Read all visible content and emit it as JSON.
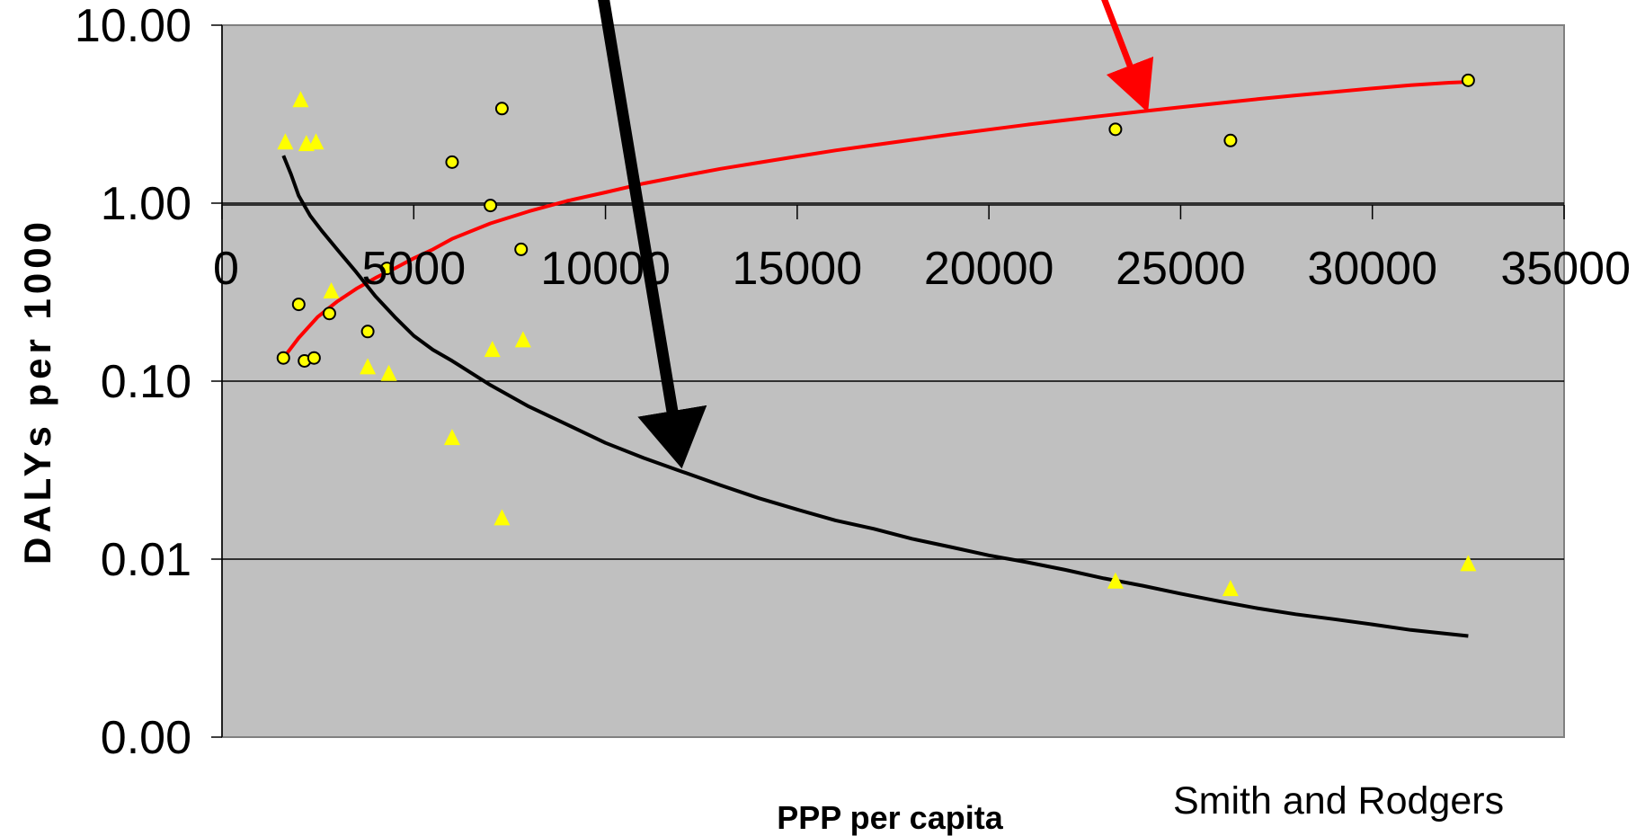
{
  "chart_data": {
    "type": "scatter",
    "title": "",
    "xlabel": "PPP per capita",
    "ylabel": "DALYs  per 1000",
    "x_scale": "linear",
    "y_scale": "log",
    "xlim": [
      0,
      35000
    ],
    "ylim": [
      0.001,
      10
    ],
    "x_ticks": [
      0,
      5000,
      10000,
      15000,
      20000,
      25000,
      30000,
      35000
    ],
    "x_tick_labels": [
      "0",
      "5000",
      "10000",
      "15000",
      "20000",
      "25000",
      "30000",
      "35000"
    ],
    "y_ticks": [
      10,
      1,
      0.1,
      0.01,
      0.001
    ],
    "y_tick_labels": [
      "10.00",
      "1.00",
      "0.10",
      "0.01",
      "0.00"
    ],
    "grid": "horizontal",
    "plot_background": "#c0c0c0",
    "source_note": "Smith and Rodgers",
    "series": [
      {
        "marker": "circle",
        "color": "#ffff00",
        "edge_color": "#000000",
        "points": [
          [
            1600,
            0.135
          ],
          [
            2000,
            0.27
          ],
          [
            2150,
            0.13
          ],
          [
            2400,
            0.135
          ],
          [
            2800,
            0.24
          ],
          [
            3800,
            0.19
          ],
          [
            4300,
            0.43
          ],
          [
            6000,
            1.7
          ],
          [
            7000,
            0.97
          ],
          [
            7300,
            3.4
          ],
          [
            7800,
            0.55
          ],
          [
            23300,
            2.6
          ],
          [
            26300,
            2.25
          ],
          [
            32500,
            4.9
          ]
        ]
      },
      {
        "marker": "triangle",
        "color": "#ffff00",
        "points": [
          [
            1650,
            2.2
          ],
          [
            2050,
            3.8
          ],
          [
            2200,
            2.15
          ],
          [
            2450,
            2.2
          ],
          [
            2850,
            0.32
          ],
          [
            3800,
            0.12
          ],
          [
            4350,
            0.11
          ],
          [
            6000,
            0.048
          ],
          [
            7050,
            0.15
          ],
          [
            7300,
            0.017
          ],
          [
            7850,
            0.17
          ],
          [
            23300,
            0.0075
          ],
          [
            26300,
            0.0068
          ],
          [
            32500,
            0.0094
          ]
        ]
      },
      {
        "type": "line",
        "color": "#ff0000",
        "x": [
          1600,
          2000,
          2500,
          3000,
          3500,
          4000,
          4500,
          5000,
          5500,
          6000,
          7000,
          8000,
          9000,
          10000,
          11000,
          12000,
          13000,
          14000,
          15000,
          16000,
          17000,
          18000,
          19000,
          20000,
          21000,
          22000,
          23000,
          24000,
          25000,
          26000,
          27000,
          28000,
          29000,
          30000,
          31000,
          32000,
          32500
        ],
        "y": [
          0.135,
          0.175,
          0.23,
          0.28,
          0.33,
          0.38,
          0.43,
          0.49,
          0.55,
          0.63,
          0.77,
          0.9,
          1.03,
          1.15,
          1.29,
          1.42,
          1.56,
          1.69,
          1.83,
          1.98,
          2.12,
          2.27,
          2.43,
          2.59,
          2.76,
          2.93,
          3.1,
          3.28,
          3.46,
          3.65,
          3.84,
          4.03,
          4.22,
          4.41,
          4.6,
          4.75,
          4.8
        ]
      },
      {
        "type": "line",
        "color": "#000000",
        "x": [
          1600,
          1800,
          2000,
          2300,
          2600,
          3000,
          3500,
          4000,
          4500,
          5000,
          5500,
          6000,
          7000,
          8000,
          9000,
          10000,
          11000,
          12000,
          13000,
          14000,
          15000,
          16000,
          17000,
          18000,
          19000,
          20000,
          21000,
          22000,
          23000,
          24000,
          25000,
          26000,
          27000,
          28000,
          29000,
          30000,
          31000,
          32000,
          32500
        ],
        "y": [
          1.85,
          1.45,
          1.1,
          0.85,
          0.7,
          0.55,
          0.41,
          0.3,
          0.23,
          0.18,
          0.15,
          0.13,
          0.095,
          0.072,
          0.057,
          0.045,
          0.037,
          0.031,
          0.026,
          0.022,
          0.019,
          0.0165,
          0.0148,
          0.013,
          0.0117,
          0.0105,
          0.0096,
          0.0087,
          0.0078,
          0.0071,
          0.0064,
          0.0058,
          0.0053,
          0.0049,
          0.0046,
          0.0043,
          0.004,
          0.0038,
          0.0037
        ]
      }
    ]
  }
}
